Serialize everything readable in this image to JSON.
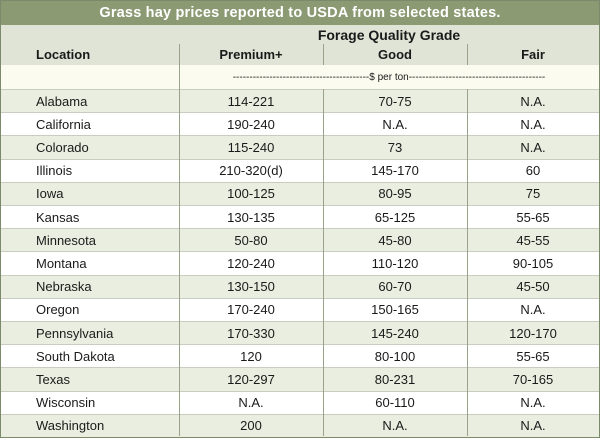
{
  "title": "Grass hay prices reported to USDA from selected states.",
  "header": {
    "group": "Forage Quality Grade",
    "location": "Location",
    "premium": "Premium+",
    "good": "Good",
    "fair": "Fair"
  },
  "units": "-----------------------------------------$ per ton-----------------------------------------",
  "rows": [
    {
      "location": "Alabama",
      "premium": "114-221",
      "good": "70-75",
      "fair": "N.A."
    },
    {
      "location": "California",
      "premium": "190-240",
      "good": "N.A.",
      "fair": "N.A."
    },
    {
      "location": "Colorado",
      "premium": "115-240",
      "good": "73",
      "fair": "N.A."
    },
    {
      "location": "Illinois",
      "premium": "210-320(d)",
      "good": "145-170",
      "fair": "60"
    },
    {
      "location": "Iowa",
      "premium": "100-125",
      "good": "80-95",
      "fair": "75"
    },
    {
      "location": "Kansas",
      "premium": "130-135",
      "good": "65-125",
      "fair": "55-65"
    },
    {
      "location": "Minnesota",
      "premium": "50-80",
      "good": "45-80",
      "fair": "45-55"
    },
    {
      "location": "Montana",
      "premium": "120-240",
      "good": "110-120",
      "fair": "90-105"
    },
    {
      "location": "Nebraska",
      "premium": "130-150",
      "good": "60-70",
      "fair": "45-50"
    },
    {
      "location": "Oregon",
      "premium": "170-240",
      "good": "150-165",
      "fair": "N.A."
    },
    {
      "location": "Pennsylvania",
      "premium": "170-330",
      "good": "145-240",
      "fair": "120-170"
    },
    {
      "location": "South Dakota",
      "premium": "120",
      "good": "80-100",
      "fair": "55-65"
    },
    {
      "location": "Texas",
      "premium": "120-297",
      "good": "80-231",
      "fair": "70-165"
    },
    {
      "location": "Wisconsin",
      "premium": "N.A.",
      "good": "60-110",
      "fair": "N.A."
    },
    {
      "location": "Washington",
      "premium": "200",
      "good": "N.A.",
      "fair": "N.A."
    }
  ],
  "colors": {
    "title_bg": "#8c9a74",
    "header_bg": "#dfe4d6",
    "units_bg": "#fcfbef",
    "row_alt": "#eaeee0"
  }
}
